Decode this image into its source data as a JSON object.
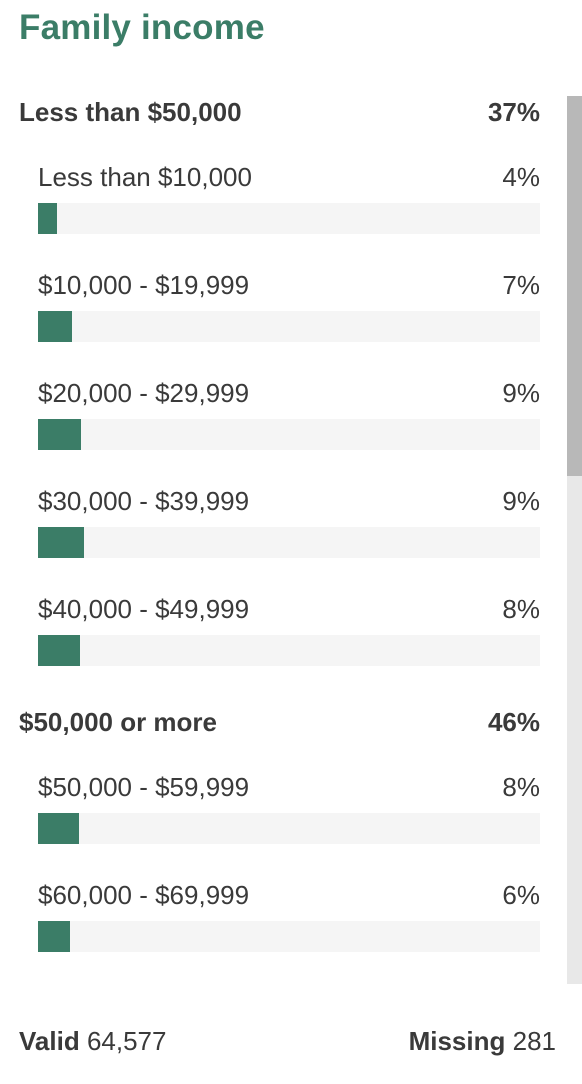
{
  "title": "Family income",
  "groups": [
    {
      "label": "Less than $50,000",
      "percent": "37%",
      "items": [
        {
          "label": "Less than $10,000",
          "percent": "4%",
          "value": 3.8
        },
        {
          "label": "$10,000 - $19,999",
          "percent": "7%",
          "value": 6.8
        },
        {
          "label": "$20,000 - $29,999",
          "percent": "9%",
          "value": 8.6
        },
        {
          "label": "$30,000 - $39,999",
          "percent": "9%",
          "value": 9.2
        },
        {
          "label": "$40,000 - $49,999",
          "percent": "8%",
          "value": 8.4
        }
      ]
    },
    {
      "label": "$50,000 or more",
      "percent": "46%",
      "items": [
        {
          "label": "$50,000 - $59,999",
          "percent": "8%",
          "value": 8.2
        },
        {
          "label": "$60,000 - $69,999",
          "percent": "6%",
          "value": 6.4
        }
      ]
    }
  ],
  "footer": {
    "valid_label": "Valid",
    "valid_value": "64,577",
    "missing_label": "Missing",
    "missing_value": "281"
  },
  "colors": {
    "accent": "#3b7d67",
    "track": "#f5f5f5",
    "text": "#3a3a3a"
  },
  "chart_data": {
    "type": "bar",
    "orientation": "horizontal",
    "title": "Family income",
    "xlim": [
      0,
      100
    ],
    "categories": [
      "Less than $10,000",
      "$10,000 - $19,999",
      "$20,000 - $29,999",
      "$30,000 - $39,999",
      "$40,000 - $49,999",
      "$50,000 - $59,999",
      "$60,000 - $69,999"
    ],
    "values": [
      3.8,
      6.8,
      8.6,
      9.2,
      8.4,
      8.2,
      6.4
    ],
    "group_totals": [
      {
        "label": "Less than $50,000",
        "value": 37
      },
      {
        "label": "$50,000 or more",
        "value": 46
      }
    ]
  }
}
